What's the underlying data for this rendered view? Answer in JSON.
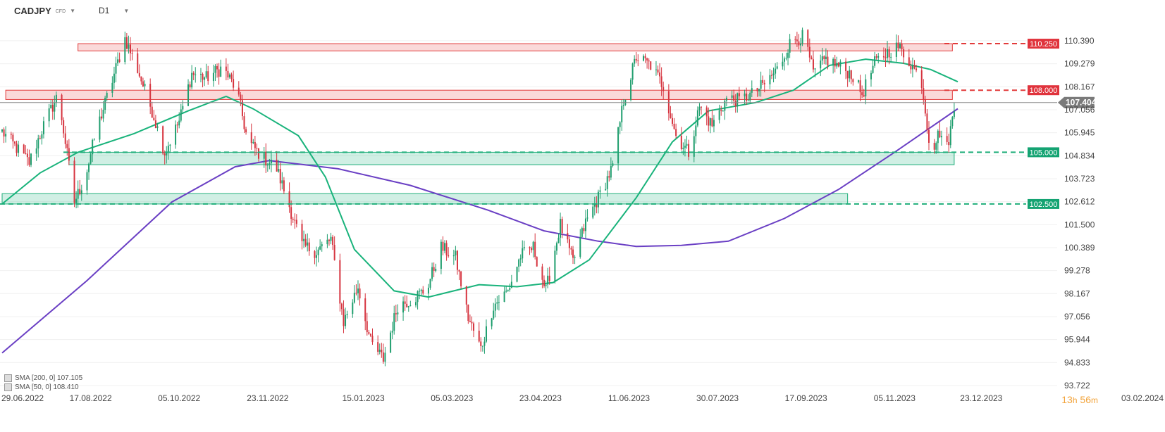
{
  "header": {
    "symbol": "CADJPY",
    "instrument_type": "CFD",
    "timeframe": "D1"
  },
  "legend": {
    "sma200": "SMA [200, 0] 107.105",
    "sma50": "SMA [50, 0] 108.410"
  },
  "timer": {
    "hours": "13",
    "hours_unit": "h",
    "minutes": "56",
    "minutes_unit": "m"
  },
  "colors": {
    "bull": "#1f9e6e",
    "bear": "#d6343f",
    "sma50": "#19b37b",
    "sma200": "#6a3fc4",
    "resistance": "#e23b3b",
    "support": "#1fae7a"
  },
  "chart_data": {
    "type": "candlestick",
    "ylim": [
      93.722,
      111.0
    ],
    "y_ticks": [
      "110.390",
      "109.279",
      "108.167",
      "107.056",
      "105.945",
      "104.834",
      "103.723",
      "102.612",
      "101.500",
      "100.389",
      "99.278",
      "98.167",
      "97.056",
      "95.944",
      "94.833",
      "93.722"
    ],
    "x_ticks": [
      "29.06.2022",
      "17.08.2022",
      "05.10.2022",
      "23.11.2022",
      "15.01.2023",
      "05.03.2023",
      "23.04.2023",
      "11.06.2023",
      "30.07.2023",
      "17.09.2023",
      "05.11.2023",
      "23.12.2023",
      "03.02.2024"
    ],
    "current_price": "107.404",
    "levels": [
      {
        "label": "110.250",
        "value": 110.25,
        "kind": "resistance"
      },
      {
        "label": "108.000",
        "value": 108.0,
        "kind": "resistance"
      },
      {
        "label": "105.000",
        "value": 105.0,
        "kind": "support"
      },
      {
        "label": "102.500",
        "value": 102.5,
        "kind": "support"
      }
    ],
    "zones": [
      {
        "kind": "resistance",
        "from_date": "2022-08-10",
        "to_date": "2023-12-07",
        "low": 109.9,
        "high": 110.25
      },
      {
        "kind": "resistance",
        "from_date": "2022-07-01",
        "to_date": "2023-12-07",
        "low": 107.55,
        "high": 108.0
      },
      {
        "kind": "support",
        "from_date": "2022-08-05",
        "to_date": "2023-12-08",
        "low": 104.4,
        "high": 105.0
      },
      {
        "kind": "support",
        "from_date": "2022-06-29",
        "to_date": "2023-10-10",
        "low": 102.5,
        "high": 103.0
      }
    ],
    "price_path": [
      [
        "2022-06-29",
        106.0
      ],
      [
        "2022-07-06",
        105.3
      ],
      [
        "2022-07-14",
        104.5
      ],
      [
        "2022-07-22",
        106.3
      ],
      [
        "2022-07-30",
        107.8
      ],
      [
        "2022-08-08",
        102.6
      ],
      [
        "2022-08-14",
        103.8
      ],
      [
        "2022-08-20",
        106.0
      ],
      [
        "2022-08-28",
        108.2
      ],
      [
        "2022-09-05",
        110.5
      ],
      [
        "2022-09-12",
        109.0
      ],
      [
        "2022-09-20",
        107.0
      ],
      [
        "2022-09-27",
        105.0
      ],
      [
        "2022-10-05",
        106.5
      ],
      [
        "2022-10-12",
        108.8
      ],
      [
        "2022-10-20",
        108.6
      ],
      [
        "2022-10-29",
        109.1
      ],
      [
        "2022-11-06",
        108.0
      ],
      [
        "2022-11-12",
        105.5
      ],
      [
        "2022-11-20",
        104.8
      ],
      [
        "2022-11-28",
        104.2
      ],
      [
        "2022-12-05",
        102.4
      ],
      [
        "2022-12-12",
        100.5
      ],
      [
        "2022-12-20",
        100.2
      ],
      [
        "2022-12-28",
        100.8
      ],
      [
        "2023-01-04",
        96.8
      ],
      [
        "2023-01-12",
        98.5
      ],
      [
        "2023-01-19",
        95.8
      ],
      [
        "2023-01-26",
        95.0
      ],
      [
        "2023-02-03",
        97.6
      ],
      [
        "2023-02-11",
        97.9
      ],
      [
        "2023-02-19",
        98.4
      ],
      [
        "2023-02-27",
        100.4
      ],
      [
        "2023-03-07",
        99.9
      ],
      [
        "2023-03-14",
        97.0
      ],
      [
        "2023-03-21",
        95.5
      ],
      [
        "2023-03-28",
        97.6
      ],
      [
        "2023-04-05",
        98.3
      ],
      [
        "2023-04-12",
        100.0
      ],
      [
        "2023-04-19",
        100.4
      ],
      [
        "2023-04-26",
        98.3
      ],
      [
        "2023-05-04",
        101.5
      ],
      [
        "2023-05-11",
        99.7
      ],
      [
        "2023-05-18",
        101.6
      ],
      [
        "2023-05-25",
        102.8
      ],
      [
        "2023-06-02",
        104.3
      ],
      [
        "2023-06-08",
        107.5
      ],
      [
        "2023-06-15",
        109.6
      ],
      [
        "2023-06-23",
        109.2
      ],
      [
        "2023-06-30",
        108.2
      ],
      [
        "2023-07-07",
        105.8
      ],
      [
        "2023-07-14",
        105.0
      ],
      [
        "2023-07-20",
        107.2
      ],
      [
        "2023-07-27",
        106.3
      ],
      [
        "2023-08-04",
        107.6
      ],
      [
        "2023-08-11",
        107.5
      ],
      [
        "2023-08-18",
        107.8
      ],
      [
        "2023-08-25",
        108.3
      ],
      [
        "2023-09-01",
        109.0
      ],
      [
        "2023-09-09",
        110.4
      ],
      [
        "2023-09-16",
        110.6
      ],
      [
        "2023-09-21",
        108.8
      ],
      [
        "2023-09-28",
        109.5
      ],
      [
        "2023-10-06",
        109.1
      ],
      [
        "2023-10-12",
        108.8
      ],
      [
        "2023-10-18",
        107.8
      ],
      [
        "2023-10-25",
        109.3
      ],
      [
        "2023-11-02",
        109.9
      ],
      [
        "2023-11-07",
        110.1
      ],
      [
        "2023-11-14",
        109.3
      ],
      [
        "2023-11-20",
        108.4
      ],
      [
        "2023-11-25",
        105.0
      ],
      [
        "2023-11-30",
        106.0
      ],
      [
        "2023-12-04",
        105.2
      ],
      [
        "2023-12-09",
        107.5
      ]
    ],
    "series": [
      {
        "name": "SMA [200, 0]",
        "path": [
          [
            "2022-06-29",
            95.3
          ],
          [
            "2022-08-15",
            98.8
          ],
          [
            "2022-10-01",
            102.6
          ],
          [
            "2022-11-05",
            104.3
          ],
          [
            "2022-11-24",
            104.6
          ],
          [
            "2023-01-01",
            104.2
          ],
          [
            "2023-02-10",
            103.4
          ],
          [
            "2023-03-25",
            102.2
          ],
          [
            "2023-04-25",
            101.2
          ],
          [
            "2023-05-25",
            100.7
          ],
          [
            "2023-06-15",
            100.45
          ],
          [
            "2023-07-10",
            100.5
          ],
          [
            "2023-08-05",
            100.7
          ],
          [
            "2023-09-05",
            101.8
          ],
          [
            "2023-10-05",
            103.2
          ],
          [
            "2023-11-05",
            105.0
          ],
          [
            "2023-12-10",
            107.105
          ]
        ]
      },
      {
        "name": "SMA [50, 0]",
        "path": [
          [
            "2022-06-29",
            102.5
          ],
          [
            "2022-07-20",
            104.0
          ],
          [
            "2022-08-10",
            105.0
          ],
          [
            "2022-09-10",
            105.9
          ],
          [
            "2022-10-10",
            107.0
          ],
          [
            "2022-10-31",
            107.7
          ],
          [
            "2022-11-15",
            107.1
          ],
          [
            "2022-12-10",
            105.8
          ],
          [
            "2022-12-25",
            103.8
          ],
          [
            "2023-01-10",
            100.3
          ],
          [
            "2023-02-01",
            98.3
          ],
          [
            "2023-02-20",
            98.0
          ],
          [
            "2023-03-20",
            98.6
          ],
          [
            "2023-04-10",
            98.5
          ],
          [
            "2023-04-30",
            98.7
          ],
          [
            "2023-05-20",
            99.8
          ],
          [
            "2023-06-15",
            102.8
          ],
          [
            "2023-07-05",
            105.5
          ],
          [
            "2023-07-25",
            107.0
          ],
          [
            "2023-08-20",
            107.4
          ],
          [
            "2023-09-10",
            108.0
          ],
          [
            "2023-09-30",
            109.2
          ],
          [
            "2023-10-20",
            109.5
          ],
          [
            "2023-11-10",
            109.3
          ],
          [
            "2023-11-25",
            109.0
          ],
          [
            "2023-12-10",
            108.41
          ]
        ]
      }
    ]
  }
}
